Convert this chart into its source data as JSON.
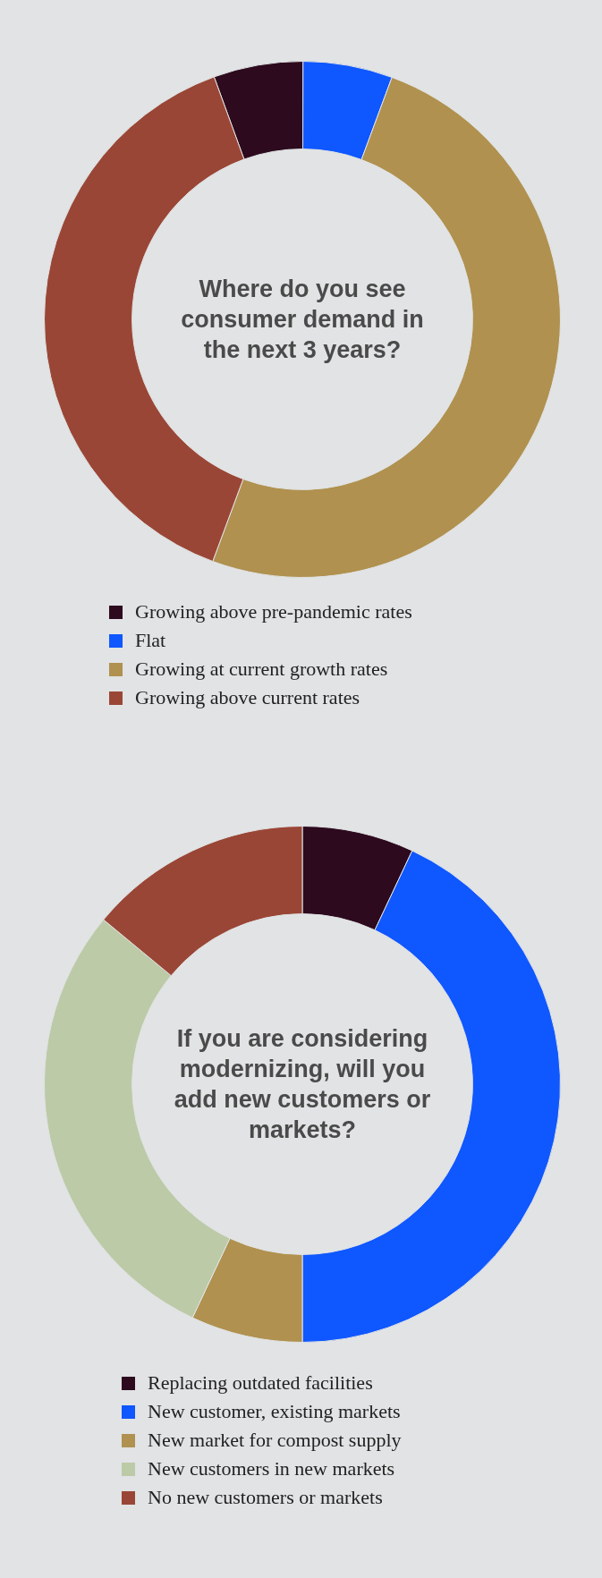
{
  "chart_data": [
    {
      "type": "donut",
      "title": "Where do you see consumer demand in the next 3 years?",
      "categories": [
        "Growing above pre-pandemic rates",
        "Flat",
        "Growing at current growth rates",
        "Growing above current rates"
      ],
      "values": [
        5.6,
        5.6,
        50,
        38.8
      ],
      "colors": [
        "#2d0a1e",
        "#0f57ff",
        "#b0914f",
        "#9a4636"
      ],
      "legend": "bottom"
    },
    {
      "type": "donut",
      "title": "If you are considering modernizing, will you add new customers or markets?",
      "categories": [
        "Replacing outdated facilities",
        "New customer, existing markets",
        "New market for compost supply",
        "New customers in new markets",
        "No new customers or markets"
      ],
      "values": [
        7,
        43,
        7,
        29,
        14
      ],
      "colors": [
        "#2d0a1e",
        "#0f57ff",
        "#b0914f",
        "#bccaa7",
        "#9a4636"
      ],
      "legend": "bottom"
    }
  ]
}
